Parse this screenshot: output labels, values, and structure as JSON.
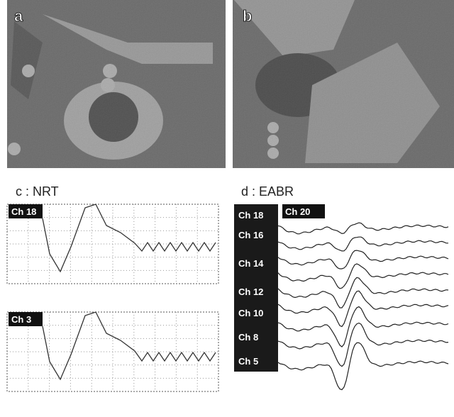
{
  "panels": {
    "a": "a",
    "b": "b",
    "c": "c : NRT",
    "d": "d : EABR"
  },
  "nrt": {
    "top": "Ch 18",
    "bottom": "Ch 3"
  },
  "eabr": {
    "channels": [
      "Ch 18",
      "Ch 16",
      "Ch 14",
      "Ch 12",
      "Ch 10",
      "Ch 8",
      "Ch 5"
    ],
    "extra": "Ch 20"
  }
}
